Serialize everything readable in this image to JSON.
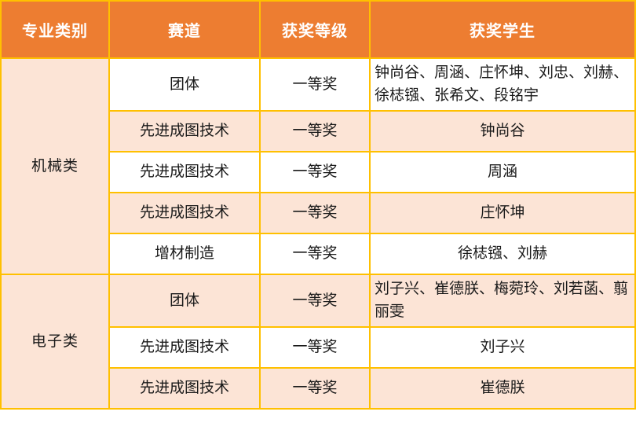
{
  "table": {
    "colors": {
      "border": "#FFC000",
      "header_bg": "#ED7D31",
      "header_text": "#FFFFFF",
      "stripe_bg": "#FCE4D6",
      "row_bg": "#FFFFFF",
      "body_text": "#1A1A1A"
    },
    "headers": [
      "专业类别",
      "赛道",
      "获奖等级",
      "获奖学生"
    ],
    "groups": [
      {
        "category": "机械类",
        "rows": [
          {
            "track": "团体",
            "level": "一等奖",
            "students": "钟尚谷、周涵、庄怀坤、刘忠、刘赫、徐梽镪、张希文、段铭宇"
          },
          {
            "track": "先进成图技术",
            "level": "一等奖",
            "students": "钟尚谷"
          },
          {
            "track": "先进成图技术",
            "level": "一等奖",
            "students": "周涵"
          },
          {
            "track": "先进成图技术",
            "level": "一等奖",
            "students": "庄怀坤"
          },
          {
            "track": "增材制造",
            "level": "一等奖",
            "students": "徐梽镪、刘赫"
          }
        ]
      },
      {
        "category": "电子类",
        "rows": [
          {
            "track": "团体",
            "level": "一等奖",
            "students": "刘子兴、崔德朕、梅菀玲、刘若菡、翦丽雯"
          },
          {
            "track": "先进成图技术",
            "level": "一等奖",
            "students": "刘子兴"
          },
          {
            "track": "先进成图技术",
            "level": "一等奖",
            "students": "崔德朕"
          }
        ]
      }
    ]
  }
}
